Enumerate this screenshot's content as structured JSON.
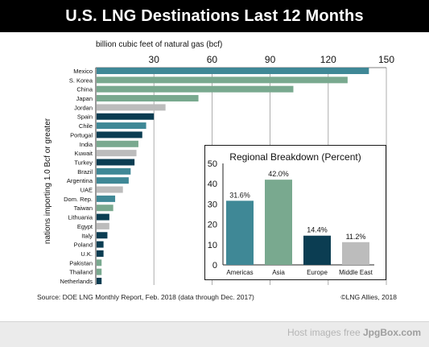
{
  "title": "U.S. LNG Destinations Last 12 Months",
  "source_note": "Source: DOE LNG Monthly Report, Feb. 2018 (data through Dec. 2017)",
  "credit": "©LNG Allies, 2018",
  "footer": {
    "prefix": "Host images free ",
    "brand": "JpgBox.com"
  },
  "colors": {
    "americas": "#3f8896",
    "asia": "#79a98f",
    "europe": "#0b3d52",
    "middle_east": "#bcbcbc"
  },
  "chart_data": [
    {
      "type": "bar",
      "orientation": "horizontal",
      "xlabel": "billion cubic feet of natural gas (bcf)",
      "ylabel": "nations importing 1.0 Bcf or greater",
      "xlim": [
        0,
        150
      ],
      "xticks": [
        30,
        60,
        90,
        120,
        150
      ],
      "grid": true,
      "categories": [
        "Mexico",
        "S. Korea",
        "China",
        "Japan",
        "Jordan",
        "Spain",
        "Chile",
        "Portugal",
        "India",
        "Kuwait",
        "Turkey",
        "Brazil",
        "Argentina",
        "UAE",
        "Dom. Rep.",
        "Taiwan",
        "Lithuania",
        "Egypt",
        "Italy",
        "Poland",
        "U.K.",
        "Pakistan",
        "Thailand",
        "Netherlands"
      ],
      "values": [
        141,
        130,
        102,
        53,
        36,
        30,
        26,
        24,
        22,
        21,
        20,
        18,
        17,
        14,
        10,
        9,
        7,
        7,
        6,
        4,
        4,
        3,
        3,
        3
      ],
      "regions": [
        "americas",
        "asia",
        "asia",
        "asia",
        "middle_east",
        "europe",
        "americas",
        "europe",
        "asia",
        "middle_east",
        "europe",
        "americas",
        "americas",
        "middle_east",
        "americas",
        "asia",
        "europe",
        "middle_east",
        "europe",
        "europe",
        "europe",
        "asia",
        "asia",
        "europe"
      ]
    },
    {
      "type": "bar",
      "title": "Regional Breakdown (Percent)",
      "categories": [
        "Americas",
        "Asia",
        "Europe",
        "Middle East"
      ],
      "values": [
        31.6,
        42.0,
        14.4,
        11.2
      ],
      "labels": [
        "31.6%",
        "42.0%",
        "14.4%",
        "11.2%"
      ],
      "ylim": [
        0,
        50
      ],
      "yticks": [
        0,
        10,
        20,
        30,
        40,
        50
      ],
      "regions": [
        "americas",
        "asia",
        "europe",
        "middle_east"
      ]
    }
  ]
}
